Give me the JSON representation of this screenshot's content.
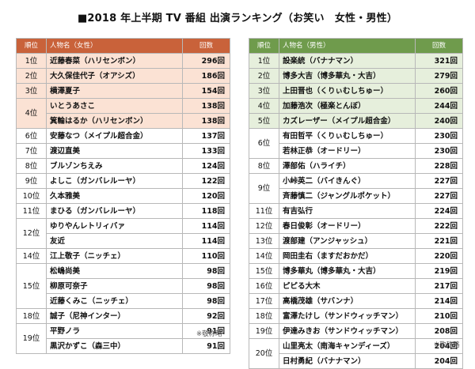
{
  "title": "■2018 年上半期 TV 番組 出演ランキング（お笑い　女性・男性）",
  "female": {
    "headers": {
      "rank": "順位",
      "name": "人物名（女性）",
      "count": "回数"
    },
    "rows": [
      {
        "rank": "1位",
        "span": 1,
        "name": "近藤春菜（ハリセンボン）",
        "count": "296回",
        "hl": true
      },
      {
        "rank": "2位",
        "span": 1,
        "name": "大久保佳代子（オアシズ）",
        "count": "186回",
        "hl": true
      },
      {
        "rank": "3位",
        "span": 1,
        "name": "横澤夏子",
        "count": "154回",
        "hl": true
      },
      {
        "rank": "4位",
        "span": 2,
        "name": "いとうあさこ",
        "count": "138回",
        "hl": true
      },
      {
        "rank": "",
        "span": 0,
        "name": "箕輪はるか（ハリセンボン）",
        "count": "138回",
        "hl": true
      },
      {
        "rank": "6位",
        "span": 1,
        "name": "安藤なつ（メイプル超合金）",
        "count": "137回",
        "hl": false
      },
      {
        "rank": "7位",
        "span": 1,
        "name": "渡辺直美",
        "count": "133回",
        "hl": false
      },
      {
        "rank": "8位",
        "span": 1,
        "name": "ブルゾンちえみ",
        "count": "124回",
        "hl": false
      },
      {
        "rank": "9位",
        "span": 1,
        "name": "よしこ（ガンバレルーヤ）",
        "count": "122回",
        "hl": false
      },
      {
        "rank": "10位",
        "span": 1,
        "name": "久本雅美",
        "count": "120回",
        "hl": false
      },
      {
        "rank": "11位",
        "span": 1,
        "name": "まひる（ガンバレルーヤ）",
        "count": "118回",
        "hl": false
      },
      {
        "rank": "12位",
        "span": 2,
        "name": "ゆりやんレトリィバァ",
        "count": "114回",
        "hl": false
      },
      {
        "rank": "",
        "span": 0,
        "name": "友近",
        "count": "114回",
        "hl": false
      },
      {
        "rank": "14位",
        "span": 1,
        "name": "江上敬子（ニッチェ）",
        "count": "110回",
        "hl": false
      },
      {
        "rank": "15位",
        "span": 3,
        "name": "松嶋尚美",
        "count": "98回",
        "hl": false
      },
      {
        "rank": "",
        "span": 0,
        "name": "柳原可奈子",
        "count": "98回",
        "hl": false
      },
      {
        "rank": "",
        "span": 0,
        "name": "近藤くみこ（ニッチェ）",
        "count": "98回",
        "hl": false
      },
      {
        "rank": "18位",
        "span": 1,
        "name": "誠子（尼神インター）",
        "count": "92回",
        "hl": false
      },
      {
        "rank": "19位",
        "span": 2,
        "name": "平野ノラ",
        "count": "91回",
        "hl": false
      },
      {
        "rank": "",
        "span": 0,
        "name": "黒沢かずこ（森三中）",
        "count": "91回",
        "hl": false
      }
    ],
    "note": "※敬称略"
  },
  "male": {
    "headers": {
      "rank": "順位",
      "name": "人物名（男性）",
      "count": "回数"
    },
    "rows": [
      {
        "rank": "1位",
        "span": 1,
        "name": "設楽統（バナナマン）",
        "count": "321回",
        "hl": true
      },
      {
        "rank": "2位",
        "span": 1,
        "name": "博多大吉（博多華丸・大吉）",
        "count": "279回",
        "hl": true
      },
      {
        "rank": "3位",
        "span": 1,
        "name": "上田晋也（くりぃむしちゅー）",
        "count": "260回",
        "hl": true
      },
      {
        "rank": "4位",
        "span": 1,
        "name": "加藤浩次（極楽とんぼ）",
        "count": "244回",
        "hl": true
      },
      {
        "rank": "5位",
        "span": 1,
        "name": "カズレーザー（メイプル超合金）",
        "count": "240回",
        "hl": true
      },
      {
        "rank": "6位",
        "span": 2,
        "name": "有田哲平（くりぃむしちゅー）",
        "count": "230回",
        "hl": false
      },
      {
        "rank": "",
        "span": 0,
        "name": "若林正恭（オードリー）",
        "count": "230回",
        "hl": false
      },
      {
        "rank": "8位",
        "span": 1,
        "name": "澤部佑（ハライチ）",
        "count": "228回",
        "hl": false
      },
      {
        "rank": "9位",
        "span": 2,
        "name": "小峠英二（バイきんぐ）",
        "count": "227回",
        "hl": false
      },
      {
        "rank": "",
        "span": 0,
        "name": "斉藤慎二（ジャングルポケット）",
        "count": "227回",
        "hl": false
      },
      {
        "rank": "11位",
        "span": 1,
        "name": "有吉弘行",
        "count": "224回",
        "hl": false
      },
      {
        "rank": "12位",
        "span": 1,
        "name": "春日俊彰（オードリー）",
        "count": "222回",
        "hl": false
      },
      {
        "rank": "13位",
        "span": 1,
        "name": "渡部建（アンジャッシュ）",
        "count": "221回",
        "hl": false
      },
      {
        "rank": "14位",
        "span": 1,
        "name": "岡田圭右（ますだおかだ）",
        "count": "220回",
        "hl": false
      },
      {
        "rank": "15位",
        "span": 1,
        "name": "博多華丸（博多華丸・大吉）",
        "count": "219回",
        "hl": false
      },
      {
        "rank": "16位",
        "span": 1,
        "name": "ピピる大木",
        "count": "217回",
        "hl": false
      },
      {
        "rank": "17位",
        "span": 1,
        "name": "高橋茂雄（サバンナ）",
        "count": "214回",
        "hl": false
      },
      {
        "rank": "18位",
        "span": 1,
        "name": "富澤たけし（サンドウィッチマン）",
        "count": "210回",
        "hl": false
      },
      {
        "rank": "19位",
        "span": 1,
        "name": "伊達みきお（サンドウィッチマン）",
        "count": "208回",
        "hl": false
      },
      {
        "rank": "20位",
        "span": 2,
        "name": "山里亮太（南海キャンディーズ）",
        "count": "204回",
        "hl": false
      },
      {
        "rank": "",
        "span": 0,
        "name": "日村勇紀（バナナマン）",
        "count": "204回",
        "hl": false
      }
    ],
    "note": "※敬称略"
  },
  "colors": {
    "female_header": "#c9623a",
    "female_highlight": "#fbe2d4",
    "male_header": "#6f9b4c",
    "male_highlight": "#e6efdc"
  }
}
